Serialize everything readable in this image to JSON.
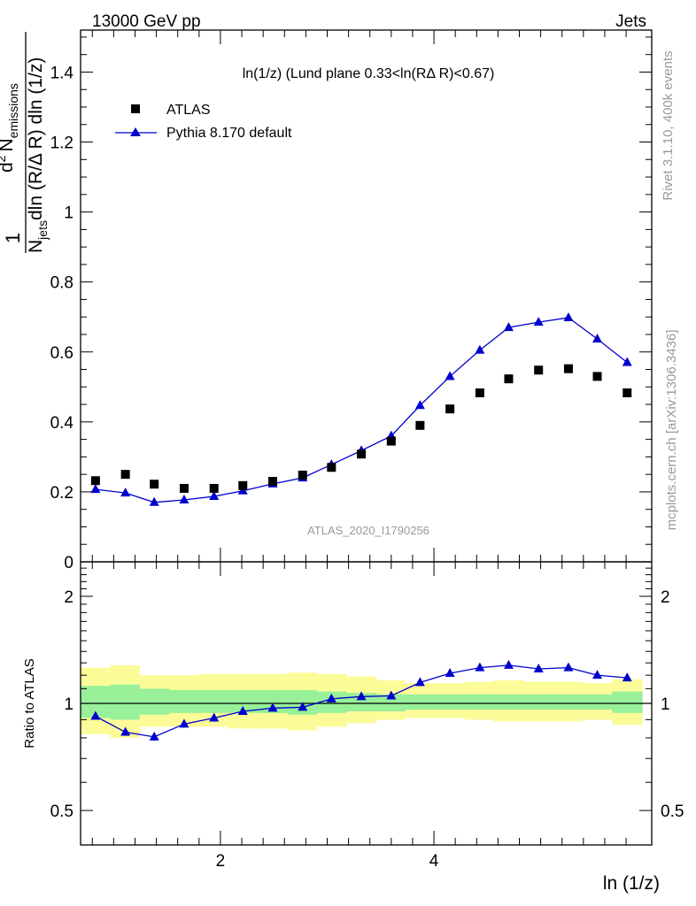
{
  "header": {
    "left": "13000 GeV pp",
    "right": "Jets"
  },
  "side": {
    "rivet": "Rivet 3.1.10,  400k events",
    "mcplots": "mcplots.cern.ch [arXiv:1306.3436]"
  },
  "main_title": "ln(1/z) (Lund plane 0.33<ln(RΔ R)<0.67)",
  "watermark": "ATLAS_2020_I1790256",
  "ylabel": {
    "frac_num": "1",
    "frac_den": "N",
    "frac_den_sub": "jets",
    "frac_den_rest": "dln (R/Δ R) dln (1/z)",
    "num_d": "d",
    "num_sup": "2",
    "num_n": "N",
    "num_sub": "emissions",
    "ratio": "Ratio to ATLAS"
  },
  "xlabel": "ln (1/z)",
  "legend": {
    "data": "ATLAS",
    "mc": "Pythia 8.170 default"
  },
  "colors": {
    "mc": "#0000cc",
    "band_inner": "#98f098",
    "band_outer": "#fbfb98",
    "data": "#000000"
  },
  "chart_data": [
    {
      "type": "scatter",
      "title": "ln(1/z) (Lund plane 0.33<ln(RΔ R)<0.67)",
      "xlabel": "ln (1/z)",
      "ylabel": "1/N_jets d²N_emissions/dln(R/ΔR) dln(1/z)",
      "xlim": [
        0.69,
        6.04
      ],
      "ylim": [
        0,
        1.52
      ],
      "yticks": [
        0,
        0.2,
        0.4,
        0.6,
        0.8,
        1,
        1.2,
        1.4
      ],
      "xticks": [
        2,
        4,
        6
      ],
      "legend_position": "top-left",
      "x": [
        0.83,
        1.11,
        1.38,
        1.66,
        1.94,
        2.21,
        2.49,
        2.77,
        3.04,
        3.32,
        3.6,
        3.87,
        4.15,
        4.43,
        4.7,
        4.98,
        5.26,
        5.53,
        5.81
      ],
      "series": [
        {
          "name": "ATLAS",
          "marker": "square",
          "values": [
            0.232,
            0.25,
            0.222,
            0.21,
            0.21,
            0.218,
            0.23,
            0.248,
            0.27,
            0.308,
            0.345,
            0.39,
            0.437,
            0.483,
            0.523,
            0.548,
            0.552,
            0.53,
            0.483
          ]
        },
        {
          "name": "Pythia 8.170 default",
          "marker": "triangle",
          "values": [
            0.207,
            0.197,
            0.17,
            0.177,
            0.187,
            0.203,
            0.223,
            0.24,
            0.278,
            0.318,
            0.36,
            0.447,
            0.53,
            0.605,
            0.67,
            0.685,
            0.698,
            0.637,
            0.57
          ]
        }
      ]
    },
    {
      "type": "line",
      "ylabel": "Ratio to ATLAS",
      "ylog": true,
      "ylim": [
        0.4,
        2.5
      ],
      "yticks": [
        0.5,
        1,
        2
      ],
      "xlim": [
        0.69,
        6.04
      ],
      "xticks": [
        2,
        4,
        6
      ],
      "bin_edges": [
        0.69,
        0.97,
        1.24,
        1.52,
        1.8,
        2.07,
        2.35,
        2.63,
        2.9,
        3.18,
        3.46,
        3.73,
        4.01,
        4.29,
        4.56,
        4.84,
        5.12,
        5.39,
        5.67,
        5.95
      ],
      "band_inner": [
        [
          0.91,
          1.12
        ],
        [
          0.9,
          1.13
        ],
        [
          0.93,
          1.1
        ],
        [
          0.94,
          1.09
        ],
        [
          0.94,
          1.09
        ],
        [
          0.94,
          1.09
        ],
        [
          0.94,
          1.09
        ],
        [
          0.93,
          1.09
        ],
        [
          0.94,
          1.08
        ],
        [
          0.95,
          1.07
        ],
        [
          0.95,
          1.06
        ],
        [
          0.96,
          1.06
        ],
        [
          0.96,
          1.06
        ],
        [
          0.96,
          1.06
        ],
        [
          0.96,
          1.06
        ],
        [
          0.96,
          1.06
        ],
        [
          0.96,
          1.06
        ],
        [
          0.96,
          1.06
        ],
        [
          0.94,
          1.08
        ]
      ],
      "band_outer": [
        [
          0.82,
          1.26
        ],
        [
          0.8,
          1.28
        ],
        [
          0.86,
          1.2
        ],
        [
          0.86,
          1.2
        ],
        [
          0.86,
          1.21
        ],
        [
          0.85,
          1.21
        ],
        [
          0.85,
          1.21
        ],
        [
          0.84,
          1.22
        ],
        [
          0.86,
          1.21
        ],
        [
          0.88,
          1.19
        ],
        [
          0.9,
          1.16
        ],
        [
          0.91,
          1.14
        ],
        [
          0.91,
          1.14
        ],
        [
          0.9,
          1.15
        ],
        [
          0.89,
          1.16
        ],
        [
          0.89,
          1.15
        ],
        [
          0.89,
          1.15
        ],
        [
          0.9,
          1.14
        ],
        [
          0.87,
          1.17
        ]
      ],
      "series": [
        {
          "name": "Pythia 8.170 default",
          "x": [
            0.83,
            1.11,
            1.38,
            1.66,
            1.94,
            2.21,
            2.49,
            2.77,
            3.04,
            3.32,
            3.6,
            3.87,
            4.15,
            4.43,
            4.7,
            4.98,
            5.26,
            5.53,
            5.81
          ],
          "values": [
            0.92,
            0.83,
            0.805,
            0.875,
            0.91,
            0.95,
            0.97,
            0.975,
            1.03,
            1.045,
            1.05,
            1.145,
            1.215,
            1.26,
            1.28,
            1.25,
            1.26,
            1.2,
            1.18
          ],
          "errors": [
            0.02,
            0.02,
            0.02,
            0.02,
            0.015,
            0.015,
            0.015,
            0.015,
            0.01,
            0.01,
            0.01,
            0.01,
            0.01,
            0.01,
            0.01,
            0.01,
            0.01,
            0.01,
            0.01
          ]
        }
      ]
    }
  ]
}
